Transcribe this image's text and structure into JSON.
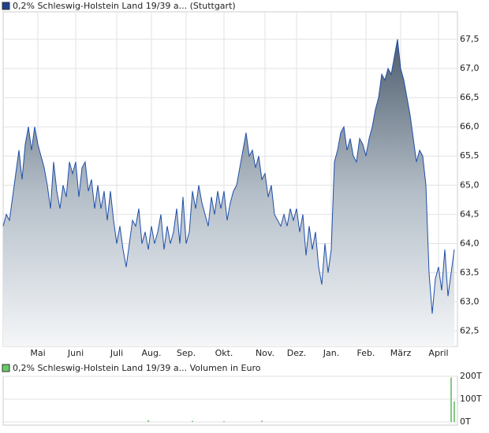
{
  "chart_data": [
    {
      "type": "area",
      "categories": [
        null,
        null,
        null,
        null,
        null,
        null,
        null,
        null,
        null,
        null,
        null,
        "Mai",
        null,
        null,
        null,
        null,
        null,
        null,
        null,
        null,
        null,
        null,
        null,
        "Juni",
        null,
        null,
        null,
        null,
        null,
        null,
        null,
        null,
        null,
        null,
        null,
        null,
        "Juli",
        null,
        null,
        null,
        null,
        null,
        null,
        null,
        null,
        null,
        null,
        "Aug.",
        null,
        null,
        null,
        null,
        null,
        null,
        null,
        null,
        null,
        null,
        "Sep.",
        null,
        null,
        null,
        null,
        null,
        null,
        null,
        null,
        null,
        null,
        null,
        "Okt.",
        null,
        null,
        null,
        null,
        null,
        null,
        null,
        null,
        null,
        null,
        null,
        null,
        "Nov.",
        null,
        null,
        null,
        null,
        null,
        null,
        null,
        null,
        null,
        "Dez.",
        null,
        null,
        null,
        null,
        null,
        null,
        null,
        null,
        null,
        null,
        "Jan.",
        null,
        null,
        null,
        null,
        null,
        null,
        null,
        null,
        null,
        null,
        "Feb.",
        null,
        null,
        null,
        null,
        null,
        null,
        null,
        null,
        null,
        null,
        "März",
        null,
        null,
        null,
        null,
        null,
        null,
        null,
        null,
        null,
        null,
        null,
        "April",
        null,
        null,
        null,
        null,
        null
      ],
      "series": [
        {
          "name": "0,2% Schleswig-Holstein Land 19/39 a... (Stuttgart)",
          "color": "#1f4fa8",
          "values": [
            64.3,
            64.5,
            64.4,
            64.8,
            65.2,
            65.6,
            65.1,
            65.7,
            66.0,
            65.6,
            66.0,
            65.7,
            65.5,
            65.3,
            65.0,
            64.6,
            65.4,
            64.9,
            64.6,
            65.0,
            64.8,
            65.4,
            65.2,
            65.4,
            64.8,
            65.3,
            65.4,
            64.9,
            65.1,
            64.6,
            65.0,
            64.6,
            64.9,
            64.4,
            64.9,
            64.4,
            64.0,
            64.3,
            63.9,
            63.6,
            64.0,
            64.4,
            64.3,
            64.6,
            64.0,
            64.2,
            63.9,
            64.3,
            64.0,
            64.2,
            64.5,
            63.9,
            64.3,
            64.0,
            64.2,
            64.6,
            64.0,
            64.8,
            64.0,
            64.2,
            64.9,
            64.6,
            65.0,
            64.7,
            64.5,
            64.3,
            64.8,
            64.5,
            64.9,
            64.6,
            64.9,
            64.4,
            64.7,
            64.9,
            65.0,
            65.3,
            65.6,
            65.9,
            65.5,
            65.6,
            65.3,
            65.5,
            65.1,
            65.2,
            64.8,
            65.0,
            64.5,
            64.4,
            64.3,
            64.5,
            64.3,
            64.6,
            64.4,
            64.6,
            64.2,
            64.5,
            63.8,
            64.3,
            63.9,
            64.2,
            63.6,
            63.3,
            64.0,
            63.5,
            63.9,
            65.4,
            65.6,
            65.9,
            66.0,
            65.6,
            65.8,
            65.5,
            65.4,
            65.8,
            65.7,
            65.5,
            65.8,
            66.0,
            66.3,
            66.5,
            66.9,
            66.8,
            67.0,
            66.9,
            67.2,
            67.5,
            67.0,
            66.8,
            66.5,
            66.2,
            65.8,
            65.4,
            65.6,
            65.5,
            65.0,
            63.5,
            62.8,
            63.4,
            63.6,
            63.2,
            63.9,
            63.1,
            63.5,
            63.9
          ]
        }
      ],
      "ylim": [
        62.24,
        67.97
      ],
      "yticks": [
        {
          "value": 62.5,
          "label": "62,5"
        },
        {
          "value": 63.0,
          "label": "63,0"
        },
        {
          "value": 63.5,
          "label": "63,5"
        },
        {
          "value": 64.0,
          "label": "64,0"
        },
        {
          "value": 64.5,
          "label": "64,5"
        },
        {
          "value": 65.0,
          "label": "65,0"
        },
        {
          "value": 65.5,
          "label": "65,5"
        },
        {
          "value": 66.0,
          "label": "66,0"
        },
        {
          "value": 66.5,
          "label": "66,5"
        },
        {
          "value": 67.0,
          "label": "67,0"
        },
        {
          "value": 67.5,
          "label": "67,5"
        }
      ],
      "grid": true
    },
    {
      "type": "bar",
      "series": [
        {
          "name": "0,2% Schleswig-Holstein Land 19/39 a... Volumen in Euro",
          "color": "#5cb85c",
          "values": [
            0,
            0,
            0,
            0,
            0,
            0,
            0,
            0,
            0,
            0,
            0,
            0,
            0,
            0,
            0,
            0,
            0,
            0,
            0,
            0,
            0,
            0,
            0,
            0,
            0,
            0,
            0,
            0,
            0,
            0,
            0,
            0,
            0,
            0,
            0,
            0,
            0,
            0,
            0,
            0,
            0,
            0,
            0,
            0,
            0,
            0,
            8000,
            0,
            0,
            0,
            0,
            0,
            0,
            0,
            0,
            0,
            0,
            0,
            0,
            0,
            5000,
            0,
            0,
            0,
            0,
            0,
            0,
            0,
            0,
            0,
            4000,
            0,
            0,
            0,
            0,
            0,
            0,
            0,
            0,
            0,
            0,
            0,
            6000,
            0,
            0,
            0,
            0,
            0,
            0,
            0,
            0,
            0,
            0,
            0,
            0,
            0,
            0,
            0,
            0,
            0,
            0,
            0,
            0,
            0,
            0,
            0,
            0,
            0,
            0,
            0,
            0,
            0,
            0,
            0,
            0,
            0,
            0,
            0,
            0,
            0,
            0,
            0,
            0,
            0,
            0,
            0,
            0,
            0,
            0,
            0,
            0,
            0,
            0,
            0,
            0,
            0,
            0,
            0,
            0,
            0,
            0,
            0,
            195000,
            90000
          ]
        }
      ],
      "ylim": [
        0,
        200000
      ],
      "yticks": [
        {
          "value": 0,
          "label": "0T"
        },
        {
          "value": 100000,
          "label": "100T"
        },
        {
          "value": 200000,
          "label": "200T"
        }
      ],
      "grid": true
    }
  ]
}
